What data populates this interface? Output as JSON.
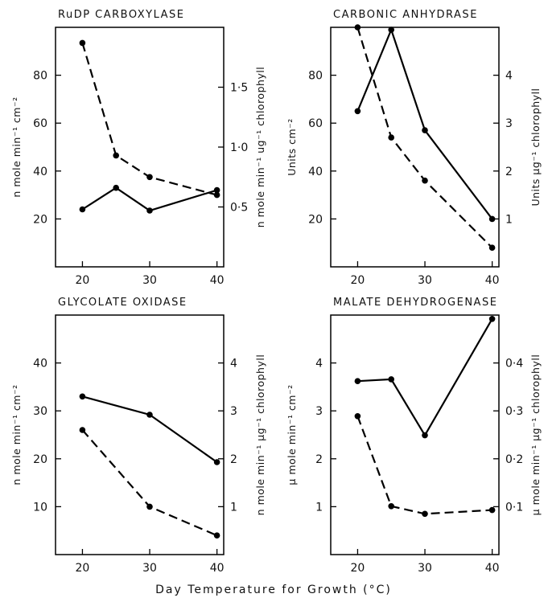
{
  "figure": {
    "xlabel": "Day Temperature for Growth (°C)"
  },
  "chart_data": [
    {
      "type": "line",
      "title": "RuDP CARBOXYLASE",
      "x_ticks": [
        20,
        30,
        40
      ],
      "xlim": [
        16,
        41
      ],
      "ylabel": "n mole min⁻¹ cm⁻²",
      "ylim": [
        0,
        100
      ],
      "y_ticks": [
        20,
        40,
        60,
        80
      ],
      "ylabel_right": "n mole min⁻¹ ug⁻¹ chlorophyll",
      "ylim_right": [
        0,
        2.0
      ],
      "y_ticks_right": [
        0.5,
        1.0,
        1.5
      ],
      "y_tick_labels_right": [
        "0·5",
        "1·0",
        "1·5"
      ],
      "series": [
        {
          "style": "solid",
          "axis": "left",
          "x": [
            20,
            25,
            30,
            40
          ],
          "y": [
            24,
            33,
            23.5,
            32
          ]
        },
        {
          "style": "dashed",
          "axis": "right",
          "x": [
            20,
            25,
            30,
            40
          ],
          "y": [
            1.87,
            0.93,
            0.75,
            0.6
          ]
        }
      ]
    },
    {
      "type": "line",
      "title": "CARBONIC ANHYDRASE",
      "x_ticks": [
        20,
        30,
        40
      ],
      "xlim": [
        16,
        41
      ],
      "ylabel": "Units cm⁻²",
      "ylim": [
        0,
        100
      ],
      "y_ticks": [
        20,
        40,
        60,
        80
      ],
      "ylabel_right": "Units μg⁻¹ chlorophyll",
      "ylim_right": [
        0,
        5
      ],
      "y_ticks_right": [
        1,
        2,
        3,
        4
      ],
      "y_tick_labels_right": [
        "1",
        "2",
        "3",
        "4"
      ],
      "series": [
        {
          "style": "solid",
          "axis": "left",
          "x": [
            20,
            25,
            30,
            40
          ],
          "y": [
            65,
            99,
            57,
            20
          ]
        },
        {
          "style": "dashed",
          "axis": "right",
          "x": [
            20,
            25,
            30,
            40
          ],
          "y": [
            5.0,
            2.7,
            1.8,
            0.4
          ]
        }
      ]
    },
    {
      "type": "line",
      "title": "GLYCOLATE OXIDASE",
      "x_ticks": [
        20,
        30,
        40
      ],
      "xlim": [
        16,
        41
      ],
      "ylabel": "n mole min⁻¹ cm⁻²",
      "ylim": [
        0,
        50
      ],
      "y_ticks": [
        10,
        20,
        30,
        40
      ],
      "ylabel_right": "n mole min⁻¹ μg⁻¹ chlorophyll",
      "ylim_right": [
        0,
        5
      ],
      "y_ticks_right": [
        1,
        2,
        3,
        4
      ],
      "y_tick_labels_right": [
        "1",
        "2",
        "3",
        "4"
      ],
      "series": [
        {
          "style": "solid",
          "axis": "left",
          "x": [
            20,
            30,
            40
          ],
          "y": [
            33,
            29.2,
            19.3
          ]
        },
        {
          "style": "dashed",
          "axis": "right",
          "x": [
            20,
            30,
            40
          ],
          "y": [
            2.6,
            1.0,
            0.4
          ]
        }
      ]
    },
    {
      "type": "line",
      "title": "MALATE DEHYDROGENASE",
      "x_ticks": [
        20,
        30,
        40
      ],
      "xlim": [
        16,
        41
      ],
      "ylabel": "μ mole min⁻¹ cm⁻²",
      "ylim": [
        0,
        5
      ],
      "y_ticks": [
        1,
        2,
        3,
        4
      ],
      "ylabel_right": "μ mole min⁻¹ μg⁻¹ chlorophyll",
      "ylim_right": [
        0,
        0.5
      ],
      "y_ticks_right": [
        0.1,
        0.2,
        0.3,
        0.4
      ],
      "y_tick_labels_right": [
        "0·1",
        "0·2",
        "0·3",
        "0·4"
      ],
      "series": [
        {
          "style": "solid",
          "axis": "left",
          "x": [
            20,
            25,
            30,
            40
          ],
          "y": [
            3.62,
            3.66,
            2.49,
            4.92
          ]
        },
        {
          "style": "dashed",
          "axis": "right",
          "x": [
            20,
            25,
            30,
            40
          ],
          "y": [
            0.289,
            0.101,
            0.085,
            0.093
          ]
        }
      ]
    }
  ]
}
